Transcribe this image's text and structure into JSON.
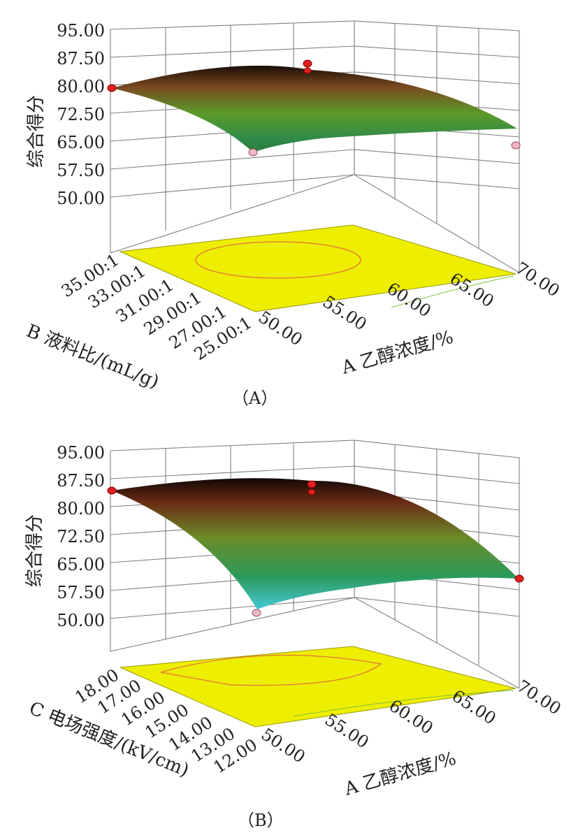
{
  "charts": [
    {
      "panel_label": "（A）",
      "z_label": "综合得分",
      "x_label": "A 乙醇浓度/%",
      "y_label": "B 液料比/(mL/g)",
      "z_ticks": [
        "95.00",
        "87.50",
        "80.00",
        "72.50",
        "65.00",
        "57.50",
        "50.00"
      ],
      "x_ticks": [
        "50.00",
        "55.00",
        "60.00",
        "65.00",
        "70.00"
      ],
      "y_ticks": [
        "35.00:1",
        "33.00:1",
        "31.00:1",
        "29.00:1",
        "27.00:1",
        "25.00:1"
      ]
    },
    {
      "panel_label": "（B）",
      "z_label": "综合得分",
      "x_label": "A 乙醇浓度/%",
      "y_label": "C 电场强度/(kV/cm)",
      "z_ticks": [
        "95.00",
        "87.50",
        "80.00",
        "72.50",
        "65.00",
        "57.50",
        "50.00"
      ],
      "x_ticks": [
        "50.00",
        "55.00",
        "60.00",
        "65.00",
        "70.00"
      ],
      "y_ticks": [
        "18.00",
        "17.00",
        "16.00",
        "15.00",
        "14.00",
        "13.00",
        "12.00"
      ]
    }
  ],
  "chart_data": [
    {
      "type": "surface",
      "x": {
        "name": "A 乙醇浓度/%",
        "range": [
          50,
          70
        ]
      },
      "y": {
        "name": "B 液料比/(mL/g)",
        "range": [
          25,
          35
        ],
        "unit_suffix": ":1"
      },
      "z": {
        "name": "综合得分",
        "range": [
          50,
          95
        ]
      },
      "surface_corners": {
        "x50_y35": 79.5,
        "x70_y35": 69.0,
        "x50_y25": 62.0,
        "x70_y25": 54.0
      },
      "surface_peak": 84.0,
      "design_points": [
        {
          "x": 50,
          "y": 35,
          "z": 79.5
        },
        {
          "x": 60,
          "y": 30,
          "z": 86.5
        },
        {
          "x": 60,
          "y": 30,
          "z": 85.5
        },
        {
          "x": 50,
          "y": 25,
          "z": 61.0
        },
        {
          "x": 70,
          "y": 35,
          "z": 64.5
        }
      ]
    },
    {
      "type": "surface",
      "x": {
        "name": "A 乙醇浓度/%",
        "range": [
          50,
          70
        ]
      },
      "y": {
        "name": "C 电场强度/(kV/cm)",
        "range": [
          12,
          18
        ]
      },
      "z": {
        "name": "综合得分",
        "range": [
          50,
          95
        ]
      },
      "surface_corners": {
        "x50_y18": 84.0,
        "x70_y18": 63.0,
        "x50_y12": 57.0,
        "x70_y12": 60.0
      },
      "surface_peak": 86.0,
      "design_points": [
        {
          "x": 50,
          "y": 18,
          "z": 84.0
        },
        {
          "x": 60,
          "y": 15,
          "z": 86.0
        },
        {
          "x": 60,
          "y": 15,
          "z": 84.5
        },
        {
          "x": 50,
          "y": 12,
          "z": 52.5
        },
        {
          "x": 70,
          "y": 18,
          "z": 61.0
        }
      ]
    }
  ]
}
